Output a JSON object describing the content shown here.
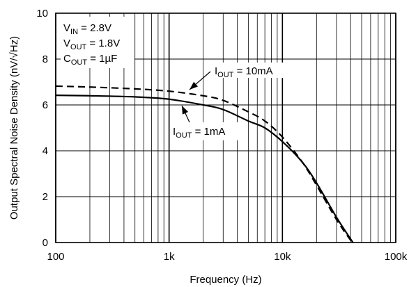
{
  "chart_data": {
    "type": "line",
    "xscale": "log",
    "xlim": [
      100,
      100000
    ],
    "ylim": [
      0,
      10
    ],
    "grid": true,
    "x_ticks": [
      100,
      1000,
      10000,
      100000
    ],
    "x_tick_labels": [
      "100",
      "1k",
      "10k",
      "100k"
    ],
    "y_ticks": [
      0,
      2,
      4,
      6,
      8,
      10
    ],
    "y_tick_labels": [
      "0",
      "2",
      "4",
      "6",
      "8",
      "10"
    ],
    "xlabel": "Frequency (Hz)",
    "ylabel": "Output Spectral Noise Density (nV/√Hz)",
    "conditions": {
      "vin": {
        "sym": "V",
        "sub": "IN",
        "val": " = 2.8V"
      },
      "vout": {
        "sym": "V",
        "sub": "OUT",
        "val": " = 1.8V"
      },
      "cout": {
        "sym": "C",
        "sub": "OUT",
        "val": " = 1µF"
      }
    },
    "series": [
      {
        "label_sym": "I",
        "label_sub": "OUT",
        "label_val": " = 10mA",
        "style": "dashed",
        "x": [
          100,
          200,
          500,
          1000,
          2000,
          3000,
          5000,
          7000,
          10000,
          15000,
          20000,
          30000,
          40000,
          42000
        ],
        "y": [
          6.82,
          6.78,
          6.7,
          6.6,
          6.4,
          6.2,
          5.7,
          5.3,
          4.6,
          3.5,
          2.5,
          1.0,
          0.1,
          0.0
        ]
      },
      {
        "label_sym": "I",
        "label_sub": "OUT",
        "label_val": " = 1mA",
        "style": "solid",
        "x": [
          100,
          200,
          500,
          1000,
          2000,
          3000,
          5000,
          7000,
          10000,
          15000,
          20000,
          30000,
          40000,
          42000
        ],
        "y": [
          6.42,
          6.4,
          6.35,
          6.25,
          6.0,
          5.8,
          5.3,
          5.0,
          4.4,
          3.5,
          2.6,
          1.1,
          0.15,
          0.0
        ]
      }
    ]
  }
}
